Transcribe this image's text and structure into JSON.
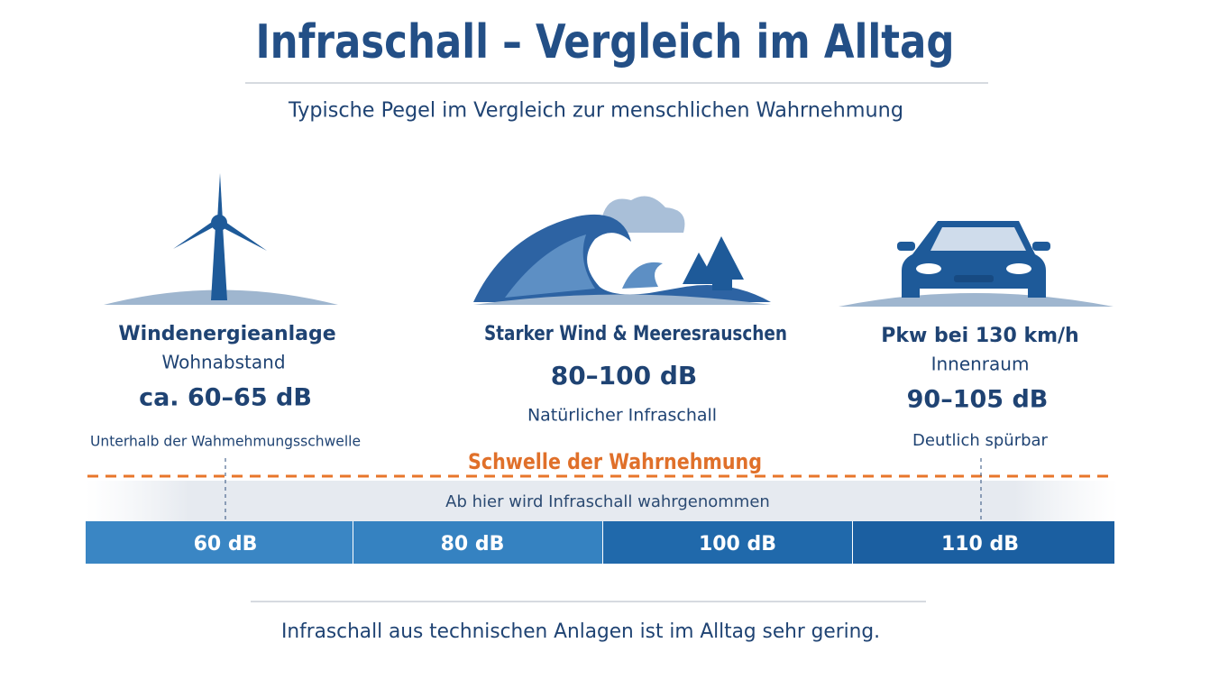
{
  "header": {
    "title": "Infraschall – Vergleich im Alltag",
    "subtitle": "Typische Pegel im Vergleich zur menschlichen Wahrnehmung"
  },
  "items": [
    {
      "name": "Windenergieanlage",
      "sub": "Wohnabstand",
      "level": "ca. 60–65 dB",
      "note": "Unterhalb der Wahmehmungsschwelle"
    },
    {
      "name": "Starker Wind & Meeresrauschen",
      "level": "80–100 dB",
      "note": "Natürlicher Infraschall"
    },
    {
      "name": "Pkw bei 130 km/h",
      "sub": "Innenraum",
      "level": "90–105 dB",
      "note": "Deutlich spürbar"
    }
  ],
  "threshold": {
    "label": "Schwelle der Wahrnehmung",
    "note": "Ab hier wird Infraschall wahrgenommen"
  },
  "scale": [
    "60 dB",
    "80 dB",
    "100 dB",
    "110 dB"
  ],
  "footer": "Infraschall aus technischen Anlagen ist im Alltag sehr gering."
}
